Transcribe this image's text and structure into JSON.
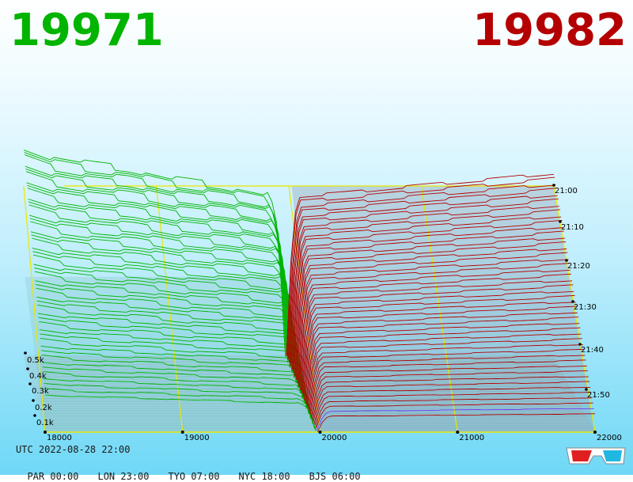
{
  "bid_price": "19971",
  "ask_price": "19982",
  "colors": {
    "bid": "#00b400",
    "ask": "#b40000",
    "grid": "#e8e800",
    "last_line": "#7040ff"
  },
  "footer": {
    "utc": "UTC 2022-08-28 22:00",
    "timezones": [
      {
        "label": "PAR 00:00"
      },
      {
        "label": "LON 23:00"
      },
      {
        "label": "TYO 07:00"
      },
      {
        "label": "NYC 18:00"
      },
      {
        "label": "BJS 06:00"
      }
    ]
  },
  "icons": {
    "stereo_toggle": "3d-glasses-icon"
  },
  "chart_data": {
    "type": "area",
    "subtype": "3d-depth-of-market",
    "x_axis": {
      "ticks": [
        "18000",
        "19000",
        "20000",
        "21000",
        "22000"
      ],
      "range": [
        18000,
        22000
      ]
    },
    "y_axis": {
      "ticks": [
        "0.1k",
        "0.2k",
        "0.3k",
        "0.4k",
        "0.5k"
      ]
    },
    "time_axis": {
      "ticks": [
        "21:00",
        "21:10",
        "21:20",
        "21:30",
        "21:40",
        "21:50"
      ]
    },
    "grid": true,
    "series": [
      {
        "name": "bid",
        "side": "left",
        "price_range": [
          18000,
          19971
        ]
      },
      {
        "name": "ask",
        "side": "right",
        "price_range": [
          19982,
          22000
        ]
      }
    ],
    "bid_depth_profile": [
      {
        "price": 18000,
        "depth": 420
      },
      {
        "price": 18200,
        "depth": 400
      },
      {
        "price": 18500,
        "depth": 385
      },
      {
        "price": 18800,
        "depth": 375
      },
      {
        "price": 19100,
        "depth": 355
      },
      {
        "price": 19500,
        "depth": 340
      },
      {
        "price": 19850,
        "depth": 320
      },
      {
        "price": 19900,
        "depth": 280
      },
      {
        "price": 19940,
        "depth": 150
      },
      {
        "price": 19971,
        "depth": 0
      }
    ],
    "ask_depth_profile": [
      {
        "price": 19982,
        "depth": 0
      },
      {
        "price": 20000,
        "depth": 60
      },
      {
        "price": 20030,
        "depth": 140
      },
      {
        "price": 20070,
        "depth": 170
      },
      {
        "price": 20500,
        "depth": 175
      },
      {
        "price": 21000,
        "depth": 182
      },
      {
        "price": 21500,
        "depth": 188
      },
      {
        "price": 22000,
        "depth": 195
      }
    ]
  }
}
